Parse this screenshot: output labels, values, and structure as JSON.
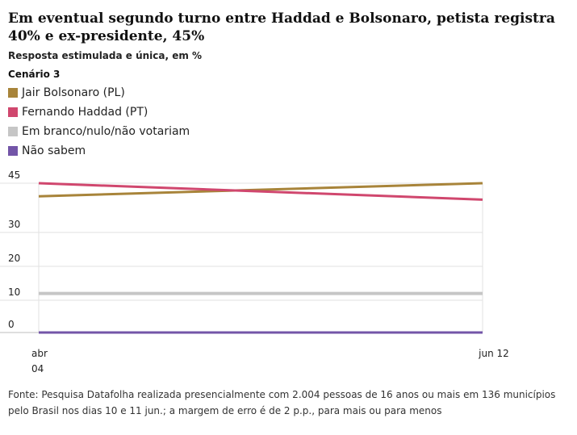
{
  "title": "Em eventual segundo turno entre Haddad e Bolsonaro, petista registra 40% e ex-presidente, 45%",
  "subtitle": "Resposta estimulada e única, em %",
  "scenario": "Cenário 3",
  "source": "Fonte: Pesquisa Datafolha realizada presencialmente com 2.004 pessoas de 16 anos ou mais em 136 municípios pelo Brasil nos dias 10 e 11 jun.; a margem de erro é de 2 p.p., para mais ou para menos",
  "chart_data": {
    "type": "line",
    "x": [
      "abr 04",
      "jun 12"
    ],
    "x_labels": [
      [
        "abr",
        "04"
      ],
      [
        "jun 12"
      ]
    ],
    "yticks": [
      0,
      10,
      20,
      30,
      45
    ],
    "ylim": [
      0,
      45
    ],
    "grid": "vertical-at-ticks",
    "legend_position": "top-left",
    "series": [
      {
        "name": "Jair Bolsonaro (PL)",
        "color": "#a8843a",
        "values": [
          41,
          45
        ]
      },
      {
        "name": "Fernando Haddad (PT)",
        "color": "#d0476e",
        "values": [
          45,
          40
        ]
      },
      {
        "name": "Em branco/nulo/não votariam",
        "color": "#c6c6c6",
        "values": [
          12,
          12
        ]
      },
      {
        "name": "Não sabem",
        "color": "#7355a8",
        "values": [
          0,
          0
        ]
      }
    ]
  }
}
